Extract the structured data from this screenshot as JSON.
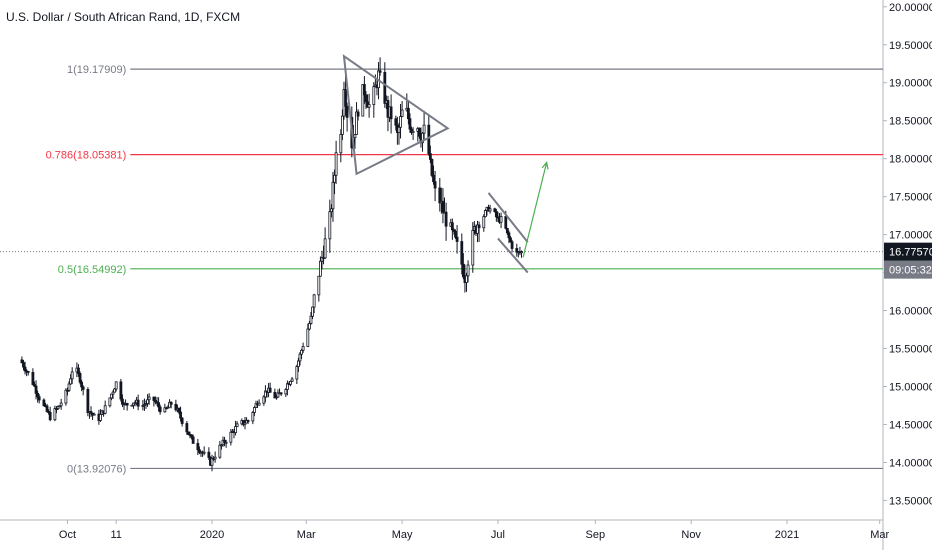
{
  "chart_data": {
    "type": "candlestick",
    "title": "U.S. Dollar / South African Rand, 1D, FXCM",
    "ylim": [
      13.4,
      20.05
    ],
    "y_ticks": [
      "20.00000",
      "19.50000",
      "19.00000",
      "18.50000",
      "18.00000",
      "17.50000",
      "17.00000",
      "16.50000",
      "16.00000",
      "15.50000",
      "15.00000",
      "14.50000",
      "14.00000",
      "13.50000"
    ],
    "x_ticks": [
      "Oct",
      "11",
      "2020",
      "Mar",
      "May",
      "Jul",
      "Sep",
      "Nov",
      "2021",
      "Mar"
    ],
    "x_tick_dates": [
      "2019-10-01",
      "2019-11-01",
      "2020-01-01",
      "2020-03-01",
      "2020-05-01",
      "2020-07-01",
      "2020-09-01",
      "2020-11-01",
      "2021-01-01",
      "2021-03-01"
    ],
    "current_price": {
      "label": "16.77570",
      "value": 16.7757,
      "color": "#131722"
    },
    "countdown": {
      "label": "09:05:32",
      "color": "#787b86"
    },
    "fib_levels": [
      {
        "label": "1(19.17909)",
        "value": 19.17909,
        "color": "#787b86"
      },
      {
        "label": "0.786(18.05381)",
        "value": 18.05381,
        "color": "#f23645"
      },
      {
        "label": "0.5(16.54992)",
        "value": 16.54992,
        "color": "#4caf50"
      },
      {
        "label": "0(13.92076)",
        "value": 13.92076,
        "color": "#787b86"
      }
    ],
    "price_path": [
      [
        "2019-09-01",
        15.35
      ],
      [
        "2019-09-08",
        15.1
      ],
      [
        "2019-09-14",
        14.8
      ],
      [
        "2019-09-20",
        14.6
      ],
      [
        "2019-09-26",
        14.75
      ],
      [
        "2019-10-01",
        14.95
      ],
      [
        "2019-10-05",
        15.3
      ],
      [
        "2019-10-09",
        15.1
      ],
      [
        "2019-10-14",
        14.7
      ],
      [
        "2019-10-20",
        14.55
      ],
      [
        "2019-10-26",
        14.75
      ],
      [
        "2019-11-01",
        15.05
      ],
      [
        "2019-11-06",
        14.75
      ],
      [
        "2019-11-12",
        14.8
      ],
      [
        "2019-11-18",
        14.75
      ],
      [
        "2019-11-24",
        14.85
      ],
      [
        "2019-12-01",
        14.65
      ],
      [
        "2019-12-07",
        14.8
      ],
      [
        "2019-12-13",
        14.55
      ],
      [
        "2019-12-19",
        14.3
      ],
      [
        "2019-12-25",
        14.15
      ],
      [
        "2019-12-31",
        14.0
      ],
      [
        "2020-01-06",
        14.2
      ],
      [
        "2020-01-12",
        14.35
      ],
      [
        "2020-01-18",
        14.5
      ],
      [
        "2020-01-24",
        14.55
      ],
      [
        "2020-01-30",
        14.8
      ],
      [
        "2020-02-05",
        14.95
      ],
      [
        "2020-02-11",
        14.85
      ],
      [
        "2020-02-17",
        15.0
      ],
      [
        "2020-02-23",
        15.2
      ],
      [
        "2020-02-28",
        15.55
      ],
      [
        "2020-03-04",
        15.9
      ],
      [
        "2020-03-08",
        16.4
      ],
      [
        "2020-03-12",
        16.8
      ],
      [
        "2020-03-16",
        17.2
      ],
      [
        "2020-03-19",
        17.8
      ],
      [
        "2020-03-21",
        18.5
      ],
      [
        "2020-03-23",
        18.3
      ],
      [
        "2020-03-25",
        19.0
      ],
      [
        "2020-03-27",
        18.6
      ],
      [
        "2020-03-29",
        18.1
      ],
      [
        "2020-04-01",
        18.4
      ],
      [
        "2020-04-04",
        18.8
      ],
      [
        "2020-04-07",
        18.9
      ],
      [
        "2020-04-10",
        18.7
      ],
      [
        "2020-04-13",
        18.85
      ],
      [
        "2020-04-16",
        19.1
      ],
      [
        "2020-04-19",
        18.9
      ],
      [
        "2020-04-22",
        18.6
      ],
      [
        "2020-04-25",
        18.55
      ],
      [
        "2020-04-28",
        18.3
      ],
      [
        "2020-05-01",
        18.6
      ],
      [
        "2020-05-04",
        18.6
      ],
      [
        "2020-05-07",
        18.4
      ],
      [
        "2020-05-10",
        18.5
      ],
      [
        "2020-05-13",
        18.3
      ],
      [
        "2020-05-16",
        18.4
      ],
      [
        "2020-05-19",
        17.9
      ],
      [
        "2020-05-22",
        17.55
      ],
      [
        "2020-05-25",
        17.45
      ],
      [
        "2020-05-28",
        17.25
      ],
      [
        "2020-06-01",
        17.05
      ],
      [
        "2020-06-04",
        16.9
      ],
      [
        "2020-06-07",
        16.7
      ],
      [
        "2020-06-10",
        16.45
      ],
      [
        "2020-06-13",
        16.8
      ],
      [
        "2020-06-16",
        17.05
      ],
      [
        "2020-06-19",
        17.2
      ],
      [
        "2020-06-22",
        17.25
      ],
      [
        "2020-06-25",
        17.35
      ],
      [
        "2020-06-28",
        17.3
      ],
      [
        "2020-07-01",
        17.2
      ],
      [
        "2020-07-04",
        17.2
      ],
      [
        "2020-07-07",
        17.0
      ],
      [
        "2020-07-10",
        16.85
      ],
      [
        "2020-07-13",
        16.75
      ],
      [
        "2020-07-16",
        16.77
      ]
    ],
    "drawings": {
      "triangle": [
        [
          "2020-03-25",
          19.35
        ],
        [
          "2020-05-30",
          18.4
        ],
        [
          "2020-04-02",
          17.8
        ]
      ],
      "wedge_upper": [
        [
          "2020-06-25",
          17.55
        ],
        [
          "2020-07-20",
          16.9
        ]
      ],
      "wedge_lower": [
        [
          "2020-07-01",
          16.95
        ],
        [
          "2020-07-20",
          16.5
        ]
      ],
      "projection_arrow": [
        [
          "2020-07-17",
          16.7
        ],
        [
          "2020-08-01",
          17.95
        ]
      ]
    },
    "grid": false
  }
}
